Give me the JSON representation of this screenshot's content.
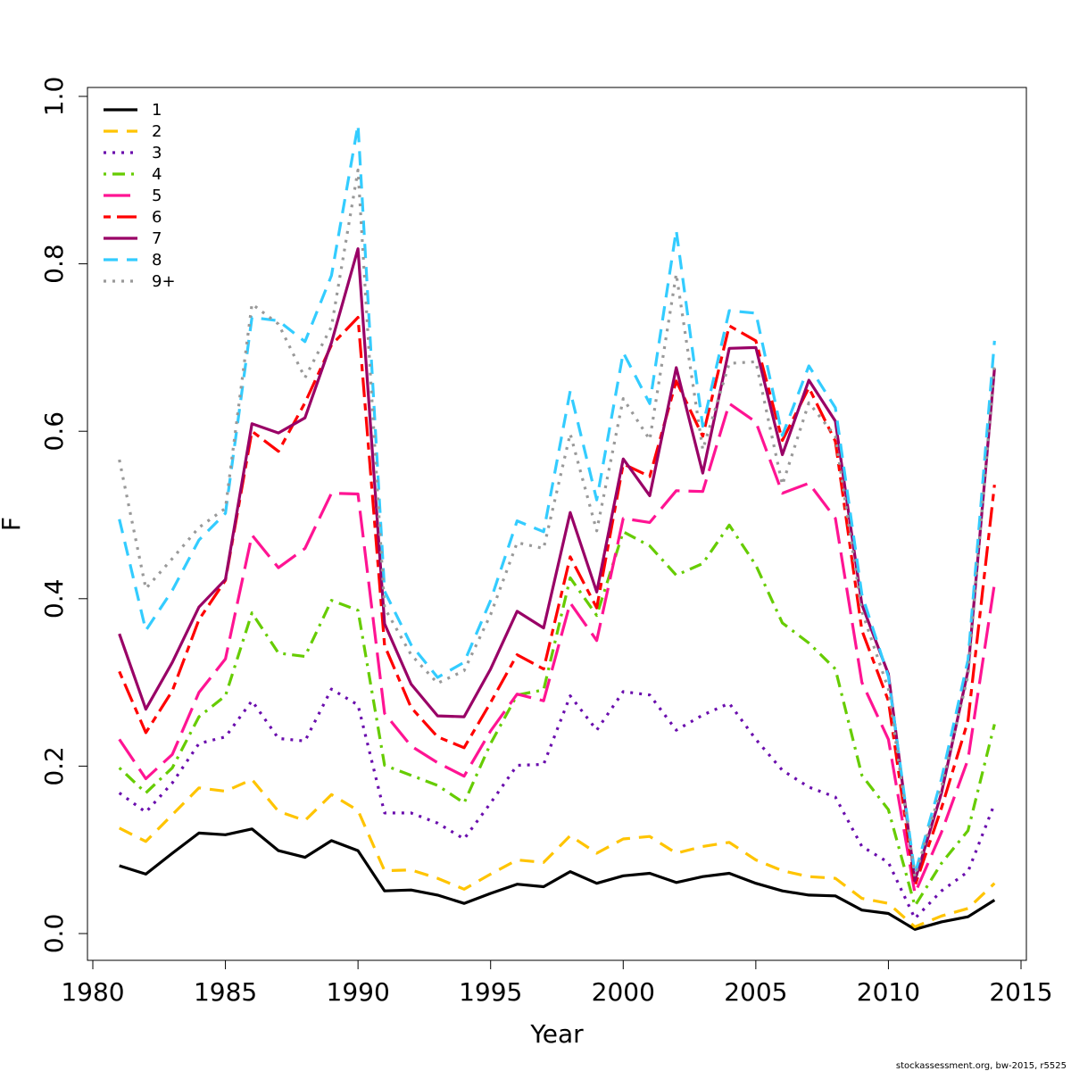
{
  "chart_data": {
    "type": "line",
    "xlabel": "Year",
    "ylabel": "F",
    "xlim": [
      1980,
      2015
    ],
    "ylim": [
      0,
      1
    ],
    "x_ticks": [
      "1980",
      "1985",
      "1990",
      "1995",
      "2000",
      "2005",
      "2010",
      "2015"
    ],
    "y_ticks": [
      "0.0",
      "0.2",
      "0.4",
      "0.6",
      "0.8",
      "1.0"
    ],
    "grid": false,
    "legend_position": "top-left",
    "x": [
      1981,
      1982,
      1983,
      1984,
      1985,
      1986,
      1987,
      1988,
      1989,
      1990,
      1991,
      1992,
      1993,
      1994,
      1995,
      1996,
      1997,
      1998,
      1999,
      2000,
      2001,
      2002,
      2003,
      2004,
      2005,
      2006,
      2007,
      2008,
      2009,
      2010,
      2011,
      2012,
      2013,
      2014
    ],
    "series": [
      {
        "name": "1",
        "color": "#000000",
        "dash": "solid",
        "values": [
          0.081,
          0.071,
          0.096,
          0.12,
          0.118,
          0.125,
          0.099,
          0.091,
          0.111,
          0.099,
          0.051,
          0.052,
          0.046,
          0.036,
          0.048,
          0.059,
          0.056,
          0.074,
          0.06,
          0.069,
          0.072,
          0.061,
          0.068,
          0.072,
          0.06,
          0.051,
          0.046,
          0.045,
          0.028,
          0.024,
          0.005,
          0.014,
          0.02,
          0.04
        ]
      },
      {
        "name": "2",
        "color": "#ffc400",
        "dash": "dashed",
        "values": [
          0.126,
          0.11,
          0.142,
          0.174,
          0.17,
          0.184,
          0.146,
          0.135,
          0.166,
          0.147,
          0.075,
          0.076,
          0.066,
          0.053,
          0.071,
          0.088,
          0.085,
          0.117,
          0.096,
          0.113,
          0.116,
          0.096,
          0.104,
          0.109,
          0.088,
          0.075,
          0.068,
          0.066,
          0.042,
          0.036,
          0.008,
          0.021,
          0.03,
          0.06
        ]
      },
      {
        "name": "3",
        "color": "#6a0dad",
        "dash": "dotted",
        "values": [
          0.168,
          0.145,
          0.18,
          0.227,
          0.235,
          0.278,
          0.233,
          0.23,
          0.292,
          0.273,
          0.144,
          0.144,
          0.132,
          0.113,
          0.156,
          0.201,
          0.202,
          0.284,
          0.243,
          0.289,
          0.285,
          0.243,
          0.261,
          0.275,
          0.232,
          0.195,
          0.175,
          0.163,
          0.104,
          0.085,
          0.018,
          0.051,
          0.074,
          0.155
        ]
      },
      {
        "name": "4",
        "color": "#66cc00",
        "dash": "dotdash",
        "values": [
          0.198,
          0.168,
          0.198,
          0.259,
          0.284,
          0.383,
          0.335,
          0.331,
          0.398,
          0.386,
          0.201,
          0.189,
          0.177,
          0.156,
          0.227,
          0.285,
          0.291,
          0.425,
          0.38,
          0.48,
          0.463,
          0.428,
          0.442,
          0.488,
          0.44,
          0.371,
          0.347,
          0.316,
          0.189,
          0.148,
          0.033,
          0.084,
          0.123,
          0.25
        ]
      },
      {
        "name": "5",
        "color": "#ff1493",
        "dash": "longdash",
        "values": [
          0.232,
          0.185,
          0.214,
          0.288,
          0.328,
          0.476,
          0.437,
          0.46,
          0.526,
          0.525,
          0.263,
          0.224,
          0.204,
          0.188,
          0.242,
          0.286,
          0.278,
          0.395,
          0.35,
          0.496,
          0.491,
          0.529,
          0.528,
          0.633,
          0.611,
          0.526,
          0.538,
          0.496,
          0.3,
          0.232,
          0.048,
          0.121,
          0.208,
          0.418
        ]
      },
      {
        "name": "6",
        "color": "#ff0000",
        "dash": "twodash",
        "values": [
          0.313,
          0.24,
          0.29,
          0.375,
          0.422,
          0.6,
          0.576,
          0.634,
          0.703,
          0.736,
          0.344,
          0.27,
          0.235,
          0.222,
          0.276,
          0.333,
          0.316,
          0.45,
          0.389,
          0.561,
          0.546,
          0.66,
          0.594,
          0.726,
          0.708,
          0.589,
          0.652,
          0.588,
          0.362,
          0.278,
          0.057,
          0.15,
          0.254,
          0.536
        ]
      },
      {
        "name": "7",
        "color": "#990066",
        "dash": "solid",
        "values": [
          0.358,
          0.268,
          0.324,
          0.39,
          0.423,
          0.609,
          0.598,
          0.616,
          0.706,
          0.818,
          0.37,
          0.298,
          0.26,
          0.259,
          0.316,
          0.385,
          0.365,
          0.503,
          0.408,
          0.567,
          0.523,
          0.676,
          0.55,
          0.699,
          0.7,
          0.572,
          0.661,
          0.612,
          0.393,
          0.31,
          0.063,
          0.168,
          0.314,
          0.675
        ]
      },
      {
        "name": "8",
        "color": "#33ccff",
        "dash": "dashed",
        "values": [
          0.495,
          0.362,
          0.41,
          0.47,
          0.502,
          0.736,
          0.732,
          0.707,
          0.786,
          0.966,
          0.409,
          0.345,
          0.306,
          0.324,
          0.398,
          0.493,
          0.48,
          0.648,
          0.518,
          0.694,
          0.633,
          0.84,
          0.606,
          0.744,
          0.741,
          0.595,
          0.678,
          0.628,
          0.405,
          0.307,
          0.071,
          0.185,
          0.327,
          0.708
        ]
      },
      {
        "name": "9+",
        "color": "#999999",
        "dash": "dotted",
        "values": [
          0.566,
          0.412,
          0.448,
          0.485,
          0.508,
          0.752,
          0.728,
          0.664,
          0.725,
          0.912,
          0.389,
          0.333,
          0.299,
          0.314,
          0.381,
          0.467,
          0.46,
          0.597,
          0.481,
          0.639,
          0.59,
          0.788,
          0.578,
          0.681,
          0.683,
          0.536,
          0.634,
          0.594,
          0.385,
          0.292,
          0.068,
          0.175,
          0.308,
          0.681
        ]
      }
    ]
  },
  "credit": "stockassessment.org, bw-2015, r5525"
}
